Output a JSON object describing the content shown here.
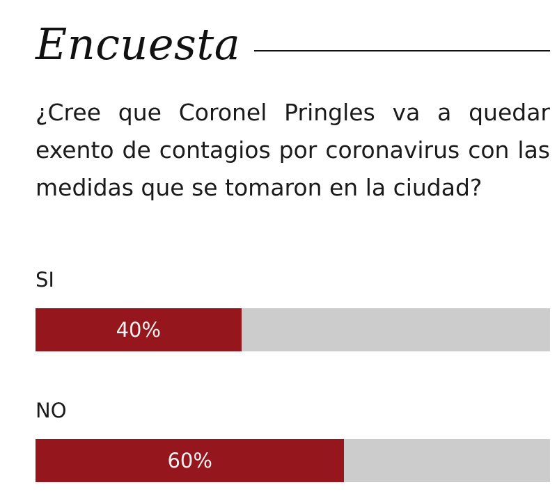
{
  "poll": {
    "title": "Encuesta",
    "question": "¿Cree que Coronel Pringles va a quedar exento de contagios por coronavirus con las medidas que se tomaron en la ciudad?",
    "options": [
      {
        "label": "SI",
        "percent_text": "40%",
        "fraction": 0.4
      },
      {
        "label": "NO",
        "percent_text": "60%",
        "fraction": 0.6
      }
    ]
  },
  "colors": {
    "bar_fill": "#95161c",
    "bar_track": "#cccccc",
    "text": "#1a1a1a"
  }
}
